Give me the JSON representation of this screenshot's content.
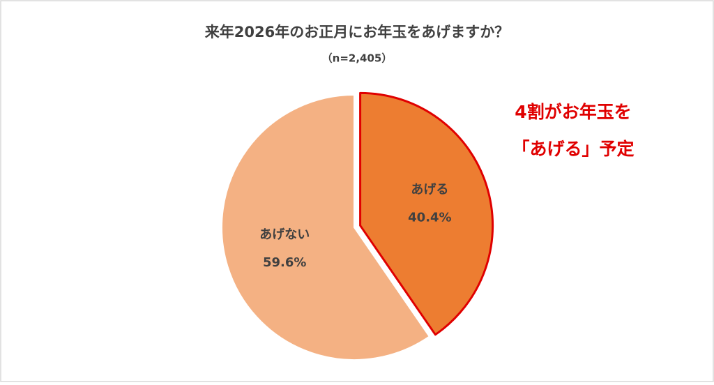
{
  "chart_data": {
    "type": "pie",
    "title": "来年2026年のお正月にお年玉をあげますか？",
    "subtitle": "（n=2,405）",
    "categories": [
      "あげる",
      "あげない"
    ],
    "values": [
      40.4,
      59.6
    ],
    "value_labels": [
      "40.4%",
      "59.6%"
    ],
    "colors": [
      "#ed7d31",
      "#f4b183"
    ],
    "explode": [
      true,
      false
    ],
    "highlight_color": "#e00000",
    "annotation": [
      "4割がお年玉を",
      "「あげる」予定"
    ]
  }
}
